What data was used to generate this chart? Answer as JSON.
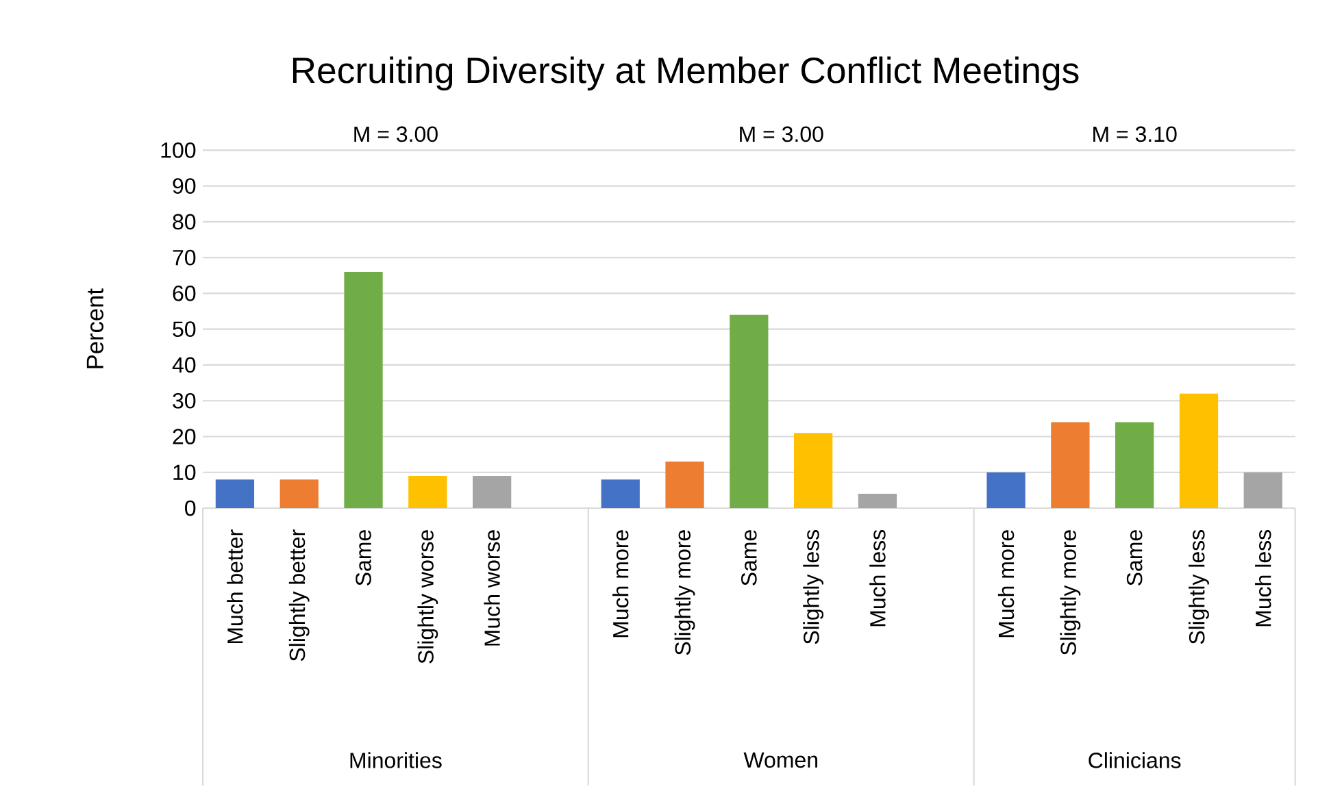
{
  "chart_data": {
    "type": "bar",
    "title": "Recruiting Diversity at Member Conflict Meetings",
    "ylabel": "Percent",
    "categories": [
      "Much better",
      "Slightly better",
      "Same",
      "Slightly worse",
      "Much worse",
      null,
      "Much more",
      "Slightly more",
      "Same",
      "Slightly less",
      "Much less",
      null,
      "Much more",
      "Slightly more",
      "Same",
      "Slightly less",
      "Much less"
    ],
    "values": [
      8,
      8,
      66,
      9,
      9,
      null,
      8,
      13,
      54,
      21,
      4,
      null,
      10,
      24,
      24,
      32,
      10
    ],
    "colors": [
      "#4472c4",
      "#ed7d31",
      "#70ad47",
      "#ffc000",
      "#a5a5a5",
      null,
      "#4472c4",
      "#ed7d31",
      "#70ad47",
      "#ffc000",
      "#a5a5a5",
      null,
      "#4472c4",
      "#ed7d31",
      "#70ad47",
      "#ffc000",
      "#a5a5a5"
    ],
    "annotations": [
      "M = 3.00",
      "M = 3.00",
      "M = 3.10",
      "Minorities",
      "Women",
      "Clinicians"
    ],
    "ylim": [
      0,
      100
    ],
    "yticks": [
      0,
      10,
      20,
      30,
      40,
      50,
      60,
      70,
      80,
      90,
      100
    ],
    "grid": "y"
  }
}
